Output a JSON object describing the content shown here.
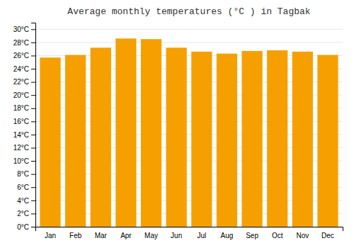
{
  "chart_data": {
    "type": "bar",
    "title": "Average monthly temperatures (°C ) in Tagbak",
    "categories": [
      "Jan",
      "Feb",
      "Mar",
      "Apr",
      "May",
      "Jun",
      "Jul",
      "Aug",
      "Sep",
      "Oct",
      "Nov",
      "Dec"
    ],
    "values": [
      25.7,
      26.1,
      27.2,
      28.6,
      28.5,
      27.2,
      26.6,
      26.3,
      26.7,
      26.8,
      26.6,
      26.1
    ],
    "color": "#F5A000",
    "ylim": [
      0,
      31
    ],
    "yticks": [
      {
        "value": 0,
        "label": "0°C"
      },
      {
        "value": 2,
        "label": "2°C"
      },
      {
        "value": 4,
        "label": "4°C"
      },
      {
        "value": 6,
        "label": "6°C"
      },
      {
        "value": 8,
        "label": "8°C"
      },
      {
        "value": 10,
        "label": "10°C"
      },
      {
        "value": 12,
        "label": "12°C"
      },
      {
        "value": 14,
        "label": "14°C"
      },
      {
        "value": 16,
        "label": "16°C"
      },
      {
        "value": 18,
        "label": "18°C"
      },
      {
        "value": 20,
        "label": "20°C"
      },
      {
        "value": 22,
        "label": "22°C"
      },
      {
        "value": 24,
        "label": "24°C"
      },
      {
        "value": 26,
        "label": "26°C"
      },
      {
        "value": 28,
        "label": "28°C"
      },
      {
        "value": 30,
        "label": "30°C"
      }
    ],
    "grid": true
  }
}
